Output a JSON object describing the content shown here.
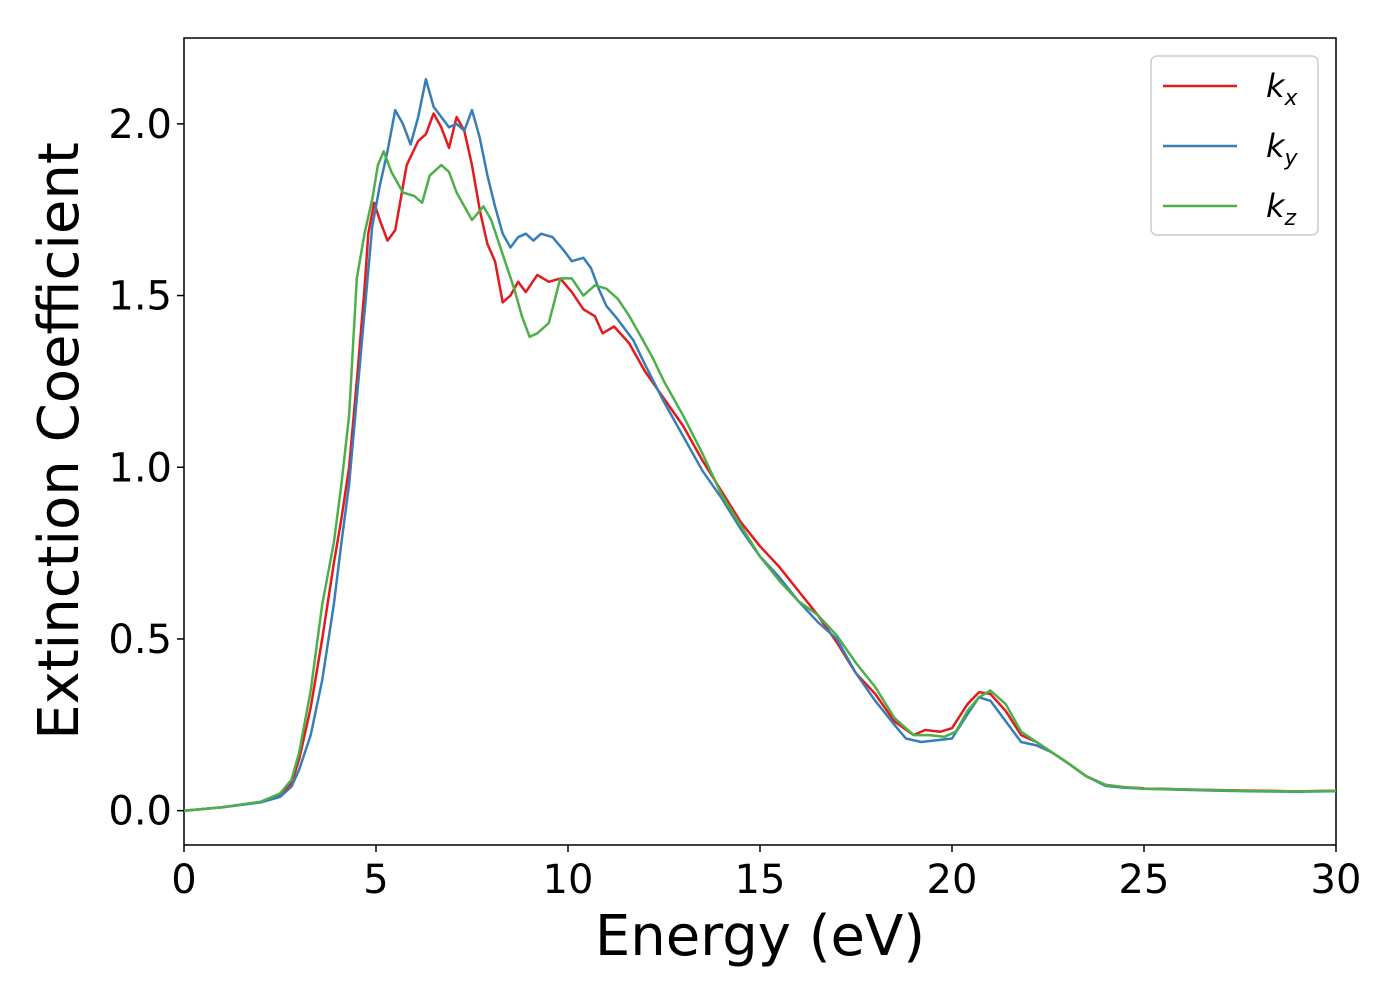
{
  "chart_data": {
    "type": "line",
    "title": "",
    "xlabel": "Energy (eV)",
    "ylabel": "Extinction Coefficient",
    "xlim": [
      0,
      30
    ],
    "ylim": [
      -0.1,
      2.25
    ],
    "xticks": [
      0,
      5,
      10,
      15,
      20,
      25,
      30
    ],
    "xtick_labels": [
      "0",
      "5",
      "10",
      "15",
      "20",
      "25",
      "30"
    ],
    "yticks": [
      0.0,
      0.5,
      1.0,
      1.5,
      2.0
    ],
    "ytick_labels": [
      "0.0",
      "0.5",
      "1.0",
      "1.5",
      "2.0"
    ],
    "grid": false,
    "legend_position": "top-right",
    "series": [
      {
        "name": "k_x",
        "label_main": "k",
        "label_sub": "x",
        "color": "#e41a1c",
        "points": [
          [
            0,
            0.0
          ],
          [
            1,
            0.01
          ],
          [
            2,
            0.025
          ],
          [
            2.5,
            0.045
          ],
          [
            2.8,
            0.08
          ],
          [
            3.0,
            0.15
          ],
          [
            3.3,
            0.3
          ],
          [
            3.6,
            0.5
          ],
          [
            3.9,
            0.72
          ],
          [
            4.1,
            0.85
          ],
          [
            4.3,
            1.0
          ],
          [
            4.5,
            1.25
          ],
          [
            4.7,
            1.52
          ],
          [
            4.8,
            1.68
          ],
          [
            4.95,
            1.77
          ],
          [
            5.1,
            1.72
          ],
          [
            5.3,
            1.66
          ],
          [
            5.5,
            1.69
          ],
          [
            5.8,
            1.88
          ],
          [
            6.1,
            1.95
          ],
          [
            6.3,
            1.97
          ],
          [
            6.5,
            2.03
          ],
          [
            6.7,
            1.99
          ],
          [
            6.9,
            1.93
          ],
          [
            7.1,
            2.02
          ],
          [
            7.3,
            1.98
          ],
          [
            7.5,
            1.88
          ],
          [
            7.7,
            1.75
          ],
          [
            7.9,
            1.65
          ],
          [
            8.1,
            1.6
          ],
          [
            8.3,
            1.48
          ],
          [
            8.5,
            1.5
          ],
          [
            8.7,
            1.54
          ],
          [
            8.9,
            1.51
          ],
          [
            9.2,
            1.56
          ],
          [
            9.5,
            1.54
          ],
          [
            9.8,
            1.55
          ],
          [
            10.1,
            1.51
          ],
          [
            10.4,
            1.46
          ],
          [
            10.7,
            1.44
          ],
          [
            10.9,
            1.39
          ],
          [
            11.2,
            1.41
          ],
          [
            11.6,
            1.36
          ],
          [
            12.0,
            1.28
          ],
          [
            12.5,
            1.2
          ],
          [
            13.0,
            1.12
          ],
          [
            13.5,
            1.02
          ],
          [
            14.0,
            0.93
          ],
          [
            14.5,
            0.84
          ],
          [
            15.0,
            0.77
          ],
          [
            15.5,
            0.71
          ],
          [
            16.0,
            0.64
          ],
          [
            16.5,
            0.57
          ],
          [
            17.0,
            0.49
          ],
          [
            17.5,
            0.4
          ],
          [
            18.0,
            0.34
          ],
          [
            18.5,
            0.26
          ],
          [
            19.0,
            0.22
          ],
          [
            19.3,
            0.235
          ],
          [
            19.7,
            0.23
          ],
          [
            20.0,
            0.24
          ],
          [
            20.4,
            0.31
          ],
          [
            20.7,
            0.345
          ],
          [
            21.0,
            0.34
          ],
          [
            21.4,
            0.29
          ],
          [
            21.8,
            0.22
          ],
          [
            22.2,
            0.2
          ],
          [
            22.6,
            0.17
          ],
          [
            23.0,
            0.14
          ],
          [
            23.5,
            0.1
          ],
          [
            24.0,
            0.075
          ],
          [
            24.5,
            0.068
          ],
          [
            25,
            0.065
          ],
          [
            26,
            0.062
          ],
          [
            27,
            0.06
          ],
          [
            28,
            0.058
          ],
          [
            29,
            0.056
          ],
          [
            30,
            0.058
          ]
        ]
      },
      {
        "name": "k_y",
        "label_main": "k",
        "label_sub": "y",
        "color": "#377eb8",
        "points": [
          [
            0,
            0.0
          ],
          [
            1,
            0.01
          ],
          [
            2,
            0.024
          ],
          [
            2.5,
            0.04
          ],
          [
            2.8,
            0.07
          ],
          [
            3.0,
            0.12
          ],
          [
            3.3,
            0.22
          ],
          [
            3.6,
            0.38
          ],
          [
            3.9,
            0.6
          ],
          [
            4.1,
            0.78
          ],
          [
            4.3,
            0.95
          ],
          [
            4.5,
            1.2
          ],
          [
            4.7,
            1.45
          ],
          [
            4.9,
            1.7
          ],
          [
            5.1,
            1.82
          ],
          [
            5.3,
            1.92
          ],
          [
            5.5,
            2.04
          ],
          [
            5.7,
            2.0
          ],
          [
            5.9,
            1.94
          ],
          [
            6.1,
            2.02
          ],
          [
            6.3,
            2.13
          ],
          [
            6.5,
            2.05
          ],
          [
            6.7,
            2.02
          ],
          [
            6.9,
            1.99
          ],
          [
            7.1,
            2.0
          ],
          [
            7.3,
            1.98
          ],
          [
            7.5,
            2.04
          ],
          [
            7.7,
            1.96
          ],
          [
            7.9,
            1.85
          ],
          [
            8.1,
            1.76
          ],
          [
            8.3,
            1.68
          ],
          [
            8.5,
            1.64
          ],
          [
            8.7,
            1.67
          ],
          [
            8.9,
            1.68
          ],
          [
            9.1,
            1.66
          ],
          [
            9.3,
            1.68
          ],
          [
            9.6,
            1.67
          ],
          [
            9.9,
            1.63
          ],
          [
            10.1,
            1.6
          ],
          [
            10.4,
            1.61
          ],
          [
            10.6,
            1.58
          ],
          [
            10.8,
            1.52
          ],
          [
            11.0,
            1.47
          ],
          [
            11.3,
            1.43
          ],
          [
            11.7,
            1.37
          ],
          [
            12.0,
            1.3
          ],
          [
            12.5,
            1.19
          ],
          [
            13.0,
            1.09
          ],
          [
            13.5,
            0.99
          ],
          [
            14.0,
            0.91
          ],
          [
            14.5,
            0.82
          ],
          [
            15.0,
            0.74
          ],
          [
            15.5,
            0.68
          ],
          [
            16.0,
            0.61
          ],
          [
            16.5,
            0.55
          ],
          [
            17.0,
            0.5
          ],
          [
            17.5,
            0.4
          ],
          [
            18.0,
            0.32
          ],
          [
            18.5,
            0.25
          ],
          [
            18.8,
            0.21
          ],
          [
            19.2,
            0.2
          ],
          [
            19.6,
            0.205
          ],
          [
            20.0,
            0.21
          ],
          [
            20.4,
            0.28
          ],
          [
            20.7,
            0.33
          ],
          [
            21.0,
            0.32
          ],
          [
            21.4,
            0.26
          ],
          [
            21.8,
            0.2
          ],
          [
            22.2,
            0.19
          ],
          [
            22.6,
            0.17
          ],
          [
            23.0,
            0.14
          ],
          [
            23.5,
            0.1
          ],
          [
            24.0,
            0.072
          ],
          [
            24.5,
            0.067
          ],
          [
            25,
            0.064
          ],
          [
            26,
            0.061
          ],
          [
            27,
            0.058
          ],
          [
            28,
            0.056
          ],
          [
            29,
            0.055
          ],
          [
            30,
            0.057
          ]
        ]
      },
      {
        "name": "k_z",
        "label_main": "k",
        "label_sub": "z",
        "color": "#4daf4a",
        "points": [
          [
            0,
            0.0
          ],
          [
            1,
            0.01
          ],
          [
            2,
            0.026
          ],
          [
            2.5,
            0.05
          ],
          [
            2.8,
            0.09
          ],
          [
            3.0,
            0.17
          ],
          [
            3.3,
            0.35
          ],
          [
            3.6,
            0.6
          ],
          [
            3.9,
            0.78
          ],
          [
            4.1,
            0.95
          ],
          [
            4.3,
            1.15
          ],
          [
            4.5,
            1.55
          ],
          [
            4.7,
            1.68
          ],
          [
            4.9,
            1.78
          ],
          [
            5.05,
            1.88
          ],
          [
            5.2,
            1.92
          ],
          [
            5.4,
            1.86
          ],
          [
            5.7,
            1.8
          ],
          [
            6.0,
            1.79
          ],
          [
            6.2,
            1.77
          ],
          [
            6.4,
            1.85
          ],
          [
            6.7,
            1.88
          ],
          [
            6.9,
            1.86
          ],
          [
            7.1,
            1.8
          ],
          [
            7.3,
            1.76
          ],
          [
            7.5,
            1.72
          ],
          [
            7.8,
            1.76
          ],
          [
            8.0,
            1.72
          ],
          [
            8.3,
            1.62
          ],
          [
            8.6,
            1.52
          ],
          [
            8.8,
            1.44
          ],
          [
            9.0,
            1.38
          ],
          [
            9.2,
            1.39
          ],
          [
            9.5,
            1.42
          ],
          [
            9.8,
            1.55
          ],
          [
            10.1,
            1.55
          ],
          [
            10.4,
            1.5
          ],
          [
            10.7,
            1.53
          ],
          [
            11.0,
            1.52
          ],
          [
            11.3,
            1.49
          ],
          [
            11.6,
            1.44
          ],
          [
            11.9,
            1.38
          ],
          [
            12.2,
            1.32
          ],
          [
            12.5,
            1.25
          ],
          [
            13.0,
            1.15
          ],
          [
            13.5,
            1.04
          ],
          [
            14.0,
            0.92
          ],
          [
            14.5,
            0.83
          ],
          [
            15.0,
            0.74
          ],
          [
            15.5,
            0.67
          ],
          [
            16.0,
            0.61
          ],
          [
            16.5,
            0.57
          ],
          [
            17.0,
            0.51
          ],
          [
            17.5,
            0.43
          ],
          [
            18.0,
            0.36
          ],
          [
            18.5,
            0.27
          ],
          [
            19.0,
            0.22
          ],
          [
            19.4,
            0.22
          ],
          [
            19.8,
            0.215
          ],
          [
            20.1,
            0.23
          ],
          [
            20.4,
            0.29
          ],
          [
            20.7,
            0.33
          ],
          [
            21.0,
            0.35
          ],
          [
            21.4,
            0.31
          ],
          [
            21.8,
            0.23
          ],
          [
            22.2,
            0.2
          ],
          [
            22.6,
            0.17
          ],
          [
            23.0,
            0.14
          ],
          [
            23.5,
            0.1
          ],
          [
            24.0,
            0.075
          ],
          [
            24.5,
            0.068
          ],
          [
            25,
            0.064
          ],
          [
            26,
            0.062
          ],
          [
            27,
            0.059
          ],
          [
            28,
            0.057
          ],
          [
            29,
            0.056
          ],
          [
            30,
            0.058
          ]
        ]
      }
    ]
  }
}
